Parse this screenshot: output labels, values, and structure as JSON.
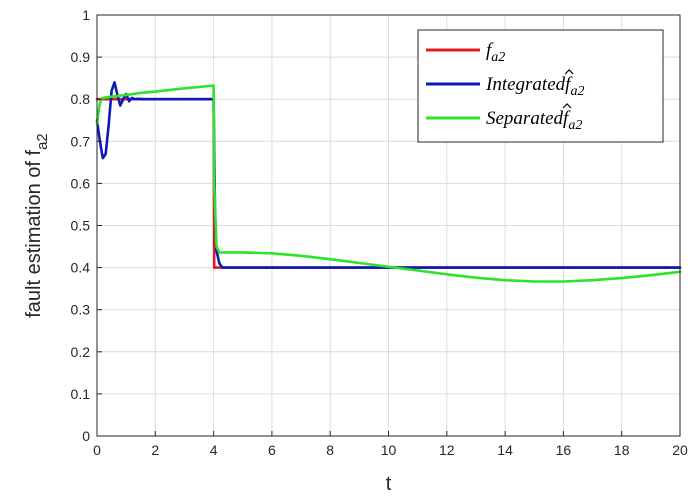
{
  "chart_data": {
    "type": "line",
    "title": "",
    "xlabel": "t",
    "ylabel_main": "fault estimation of f",
    "ylabel_sub": "a2",
    "xlim": [
      0,
      20
    ],
    "ylim": [
      0,
      1
    ],
    "grid": true,
    "legend_position": "top-right",
    "x_ticks": [
      "0",
      "2",
      "4",
      "6",
      "8",
      "10",
      "12",
      "14",
      "16",
      "18",
      "20"
    ],
    "y_ticks": [
      "0",
      "0.1",
      "0.2",
      "0.3",
      "0.4",
      "0.5",
      "0.6",
      "0.7",
      "0.8",
      "0.9",
      "1"
    ],
    "series": [
      {
        "name": "f_{a2}",
        "legend_main": "f",
        "legend_sub": "a2",
        "legend_hat": false,
        "color": "#e41a1c",
        "x": [
          0,
          4.0,
          4.02,
          20
        ],
        "y": [
          0.8,
          0.8,
          0.4,
          0.4
        ]
      },
      {
        "name": "Integrated \\hat{f}_{a2}",
        "legend_main": "Integratedf",
        "legend_sub": "a2",
        "legend_hat": true,
        "color": "#0a1ab8",
        "x": [
          0,
          0.1,
          0.2,
          0.3,
          0.4,
          0.5,
          0.6,
          0.7,
          0.8,
          0.9,
          1.0,
          1.1,
          1.2,
          1.3,
          1.4,
          1.6,
          1.8,
          2.0,
          4.0,
          4.05,
          4.1,
          4.2,
          4.3,
          20
        ],
        "y": [
          0.75,
          0.7,
          0.66,
          0.67,
          0.74,
          0.82,
          0.84,
          0.81,
          0.785,
          0.8,
          0.812,
          0.795,
          0.803,
          0.8,
          0.801,
          0.8,
          0.8,
          0.8,
          0.8,
          0.52,
          0.44,
          0.41,
          0.4,
          0.4
        ]
      },
      {
        "name": "Separated \\hat{f}_{a2}",
        "legend_main": "Separatedf",
        "legend_sub": "a2",
        "legend_hat": true,
        "color": "#2ee22e",
        "x": [
          0,
          0.05,
          0.1,
          0.15,
          0.2,
          0.5,
          1.0,
          1.5,
          2.0,
          2.5,
          3.0,
          3.5,
          3.95,
          4.0,
          4.02,
          4.1,
          4.2,
          5.0,
          6.0,
          7.0,
          8.0,
          9.0,
          10.0,
          11.0,
          12.0,
          13.0,
          14.0,
          15.0,
          16.0,
          17.0,
          18.0,
          19.0,
          20.0
        ],
        "y": [
          0.74,
          0.77,
          0.79,
          0.8,
          0.803,
          0.806,
          0.81,
          0.815,
          0.818,
          0.822,
          0.826,
          0.829,
          0.832,
          0.832,
          0.6,
          0.45,
          0.436,
          0.436,
          0.434,
          0.428,
          0.42,
          0.411,
          0.402,
          0.393,
          0.384,
          0.376,
          0.37,
          0.367,
          0.367,
          0.37,
          0.375,
          0.382,
          0.39
        ]
      }
    ]
  }
}
